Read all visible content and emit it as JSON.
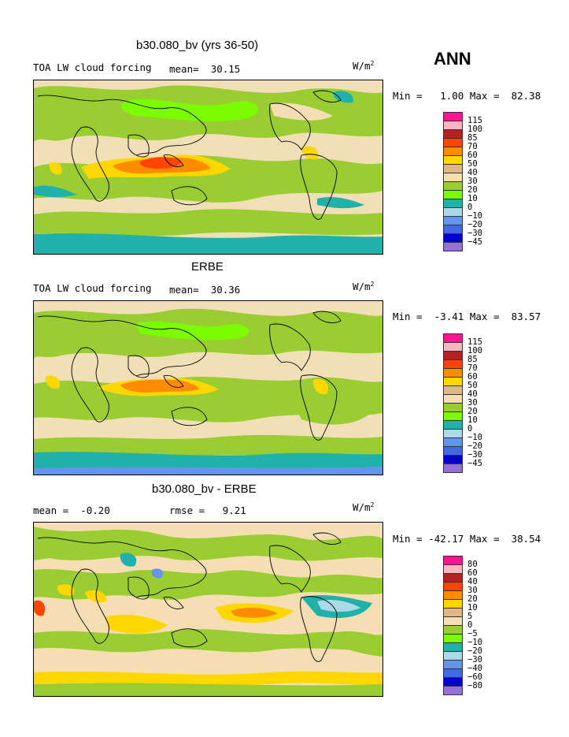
{
  "season": "ANN",
  "panels": [
    {
      "title": "b30.080_bv (yrs 36-50)",
      "left_label": "TOA LW cloud forcing",
      "mean_label": "mean=",
      "mean_value": "30.15",
      "units_base": "W/m",
      "units_exp": "2",
      "min_label": "Min =",
      "min_value": "1.00",
      "max_label": "Max =",
      "max_value": "82.38",
      "legend": [
        "115",
        "100",
        "85",
        "70",
        "60",
        "50",
        "40",
        "30",
        "20",
        "10",
        "0",
        "-10",
        "-20",
        "-30",
        "-45"
      ]
    },
    {
      "title": "ERBE",
      "left_label": "TOA LW cloud forcing",
      "mean_label": "mean=",
      "mean_value": "30.36",
      "units_base": "W/m",
      "units_exp": "2",
      "min_label": "Min =",
      "min_value": "-3.41",
      "max_label": "Max =",
      "max_value": "83.57",
      "legend": [
        "115",
        "100",
        "85",
        "70",
        "60",
        "50",
        "40",
        "30",
        "20",
        "10",
        "0",
        "-10",
        "-20",
        "-30",
        "-45"
      ]
    },
    {
      "title": "b30.080_bv - ERBE",
      "left_label": "mean =",
      "mean_value": "-0.20",
      "rmse_label": "rmse =",
      "rmse_value": "9.21",
      "units_base": "W/m",
      "units_exp": "2",
      "min_label": "Min =",
      "min_value": "-42.17",
      "max_label": "Max =",
      "max_value": "38.54",
      "legend": [
        "80",
        "60",
        "40",
        "30",
        "20",
        "10",
        "5",
        "0",
        "-5",
        "-10",
        "-20",
        "-30",
        "-40",
        "-60",
        "-80"
      ]
    }
  ],
  "colors": {
    "palette": [
      "#ff1493",
      "#ffb6c1",
      "#b22222",
      "#ff4500",
      "#ff8c00",
      "#ffd700",
      "#deb887",
      "#f5deb3",
      "#9acd32",
      "#7cfc00",
      "#20b2aa",
      "#add8e6",
      "#6495ed",
      "#4169e1",
      "#0000cd",
      "#9370db"
    ],
    "background": "#f1dfb8"
  }
}
